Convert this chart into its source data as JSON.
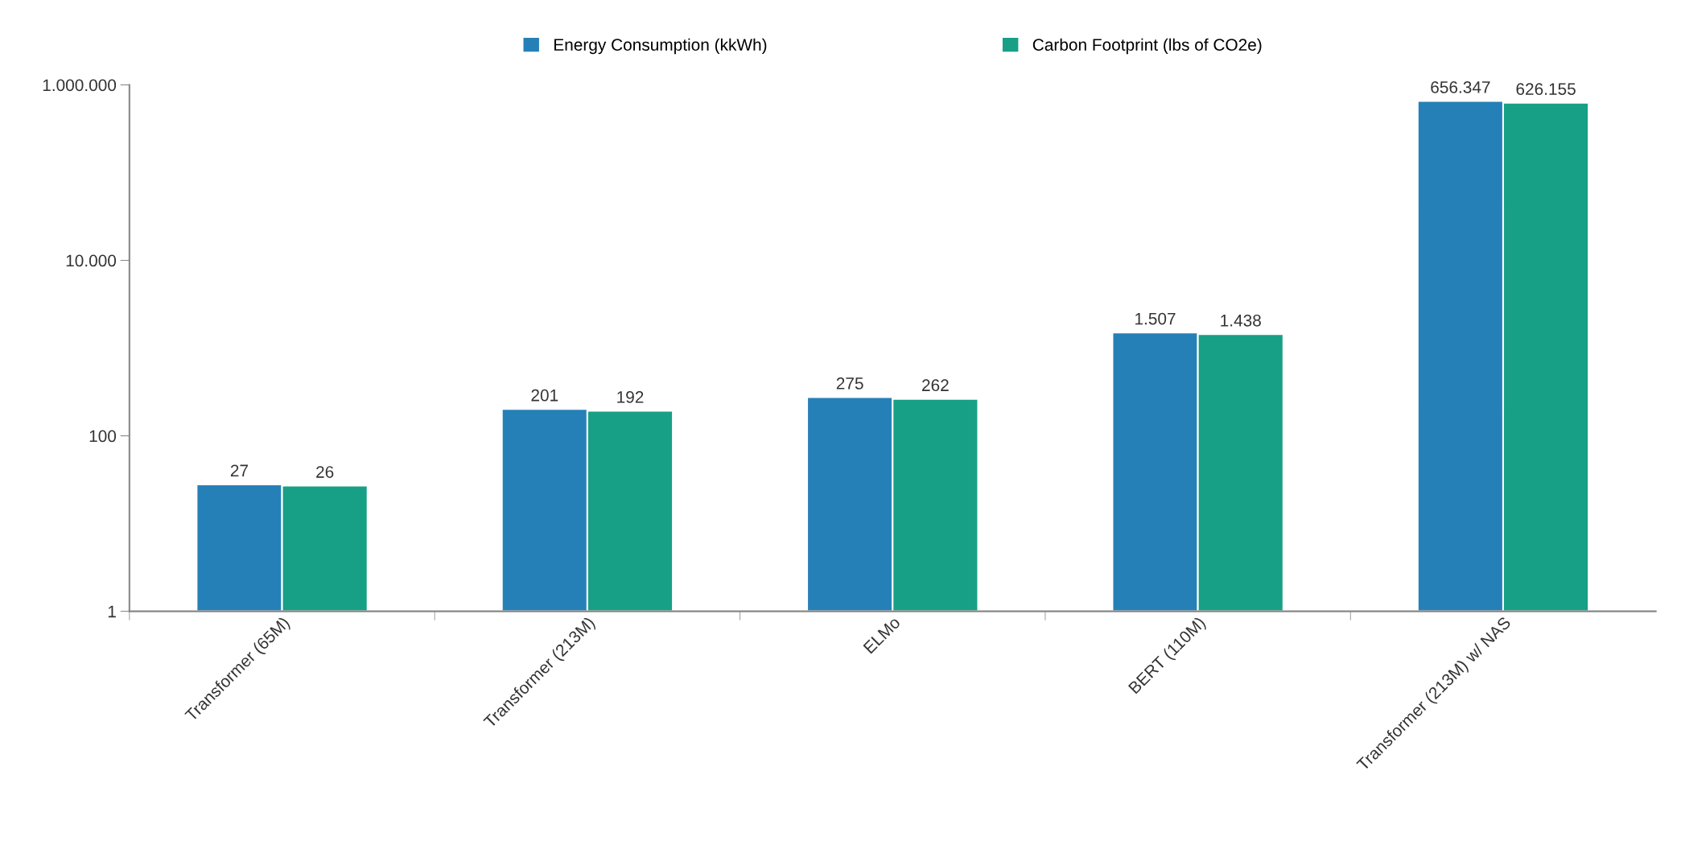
{
  "chart_data": {
    "type": "bar",
    "categories": [
      "Transformer (65M)",
      "Transformer (213M)",
      "ELMo",
      "BERT (110M)",
      "Transformer (213M) w/ NAS"
    ],
    "series": [
      {
        "name": "Energy Consumption (kkWh)",
        "color": "#2680b8",
        "values": [
          27,
          201,
          275,
          1507,
          656347
        ],
        "value_labels": [
          "27",
          "201",
          "275",
          "1.507",
          "656.347"
        ]
      },
      {
        "name": "Carbon Footprint (lbs of CO2e)",
        "color": "#17a085",
        "values": [
          26,
          192,
          262,
          1438,
          626155
        ],
        "value_labels": [
          "26",
          "192",
          "262",
          "1.438",
          "626.155"
        ]
      }
    ],
    "log": true,
    "ylim": [
      1,
      1000000
    ],
    "yticks": [
      1,
      100,
      {
        "value": 10000,
        "label": "10.000"
      },
      {
        "value": 1000000,
        "label": "1.000.000"
      }
    ],
    "grid": false,
    "legend": "top"
  }
}
